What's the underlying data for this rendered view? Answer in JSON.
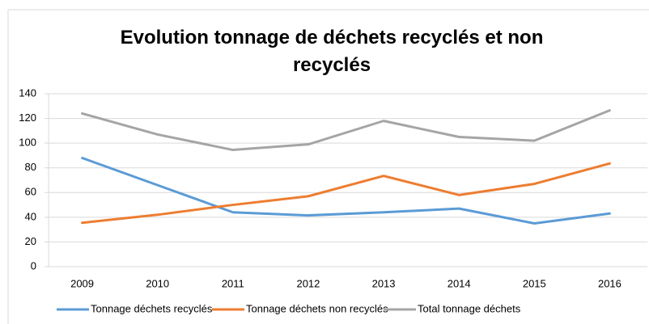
{
  "chart_data": {
    "type": "line",
    "title": "Evolution tonnage de déchets recyclés et non recyclés",
    "categories": [
      "2009",
      "2010",
      "2011",
      "2012",
      "2013",
      "2014",
      "2015",
      "2016"
    ],
    "series": [
      {
        "name": "Tonnage déchets recyclés",
        "color": "#5b9bd5",
        "values": [
          88,
          66,
          44,
          41.5,
          44,
          47,
          35,
          43
        ]
      },
      {
        "name": "Tonnage déchets non recyclés",
        "color": "#ed7d31",
        "values": [
          35.5,
          42,
          50,
          57,
          73.5,
          58,
          67,
          83.5
        ]
      },
      {
        "name": "Total tonnage déchets",
        "color": "#a5a5a5",
        "values": [
          124,
          107,
          94.5,
          99,
          118,
          105,
          102,
          126.5
        ]
      }
    ],
    "ylim": [
      0,
      140
    ],
    "yticks": [
      0,
      20,
      40,
      60,
      80,
      100,
      120,
      140
    ],
    "grid": true,
    "legend": "bottom"
  }
}
